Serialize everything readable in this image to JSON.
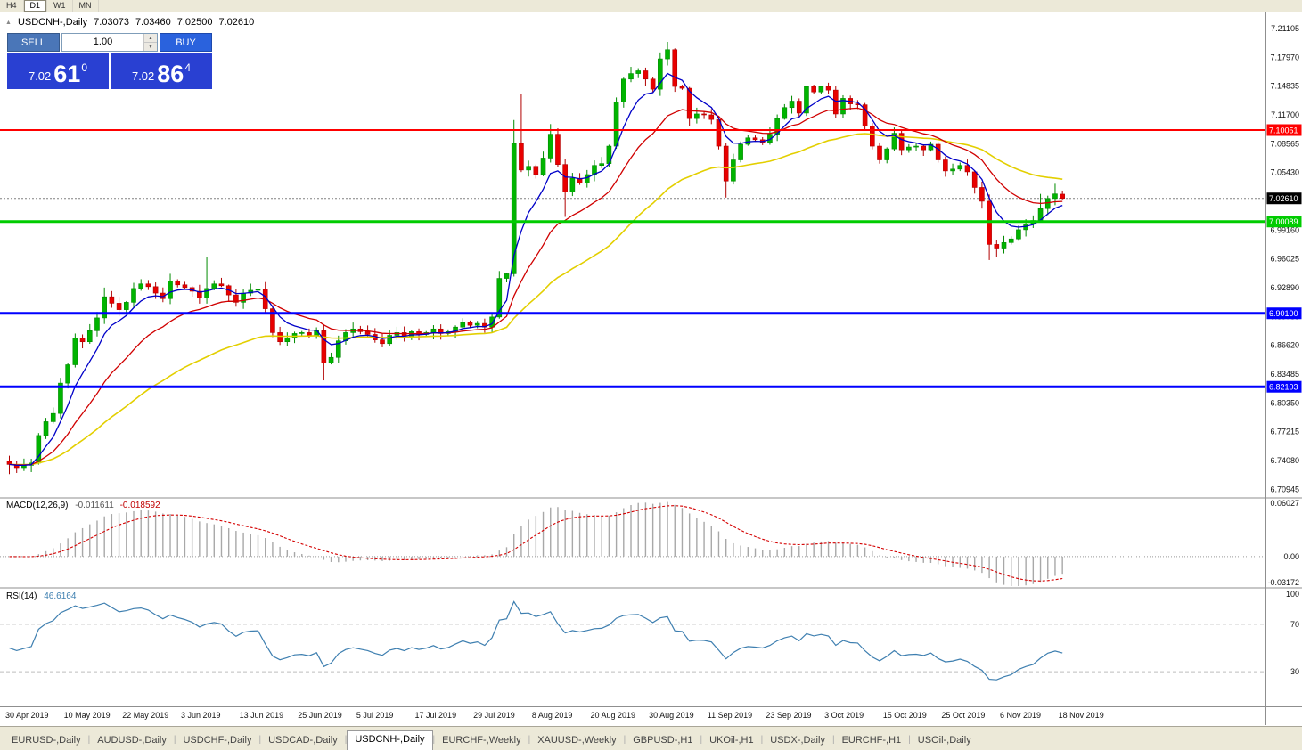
{
  "toolbar": {
    "timeframes": [
      {
        "label": "H4",
        "active": false
      },
      {
        "label": "D1",
        "active": true
      },
      {
        "label": "W1",
        "active": false
      },
      {
        "label": "MN",
        "active": false
      }
    ]
  },
  "chart_header": {
    "symbol": "USDCNH-,Daily",
    "open": "7.03073",
    "high": "7.03460",
    "low": "7.02500",
    "close": "7.02610"
  },
  "one_click_trading": {
    "sell_label": "SELL",
    "buy_label": "BUY",
    "volume": "1.00",
    "sell_price": {
      "prefix": "7.02",
      "big": "61",
      "sup": "0"
    },
    "buy_price": {
      "prefix": "7.02",
      "big": "86",
      "sup": "4"
    }
  },
  "price_axis": {
    "labels": [
      "7.21105",
      "7.17970",
      "7.14835",
      "7.11700",
      "7.08565",
      "7.05430",
      "7.02295",
      "6.99160",
      "6.96025",
      "6.92890",
      "6.89755",
      "6.86620",
      "6.83485",
      "6.80350",
      "6.77215",
      "6.74080",
      "6.70945"
    ],
    "current": "7.02610"
  },
  "hlines": [
    {
      "price": 7.10051,
      "label": "7.10051",
      "color": "#FF0000",
      "width": 2
    },
    {
      "price": 7.00089,
      "label": "7.00089",
      "color": "#00CC00",
      "width": 3
    },
    {
      "price": 6.901,
      "label": "6.90100",
      "color": "#0000FF",
      "width": 3
    },
    {
      "price": 6.82103,
      "label": "6.82103",
      "color": "#0000FF",
      "width": 3
    }
  ],
  "chart_data": {
    "type": "candlestick",
    "symbol": "USDCNH",
    "timeframe": "Daily",
    "price_range": {
      "top": 7.2285,
      "bottom": 6.701
    },
    "first_open": 6.74,
    "closes": [
      6.7365,
      6.733,
      6.7355,
      6.738,
      6.768,
      6.783,
      6.792,
      6.825,
      6.845,
      6.874,
      6.87,
      6.882,
      6.896,
      6.919,
      6.912,
      6.905,
      6.913,
      6.928,
      6.933,
      6.93,
      6.923,
      6.917,
      6.936,
      6.932,
      6.929,
      6.925,
      6.918,
      6.928,
      6.933,
      6.931,
      6.921,
      6.913,
      6.923,
      6.926,
      6.927,
      6.906,
      6.88,
      6.87,
      6.874,
      6.879,
      6.88,
      6.877,
      6.882,
      6.847,
      6.853,
      6.871,
      6.88,
      6.884,
      6.881,
      6.878,
      6.872,
      6.868,
      6.877,
      6.88,
      6.876,
      6.881,
      6.878,
      6.88,
      6.884,
      6.879,
      6.881,
      6.886,
      6.891,
      6.888,
      6.89,
      6.886,
      6.897,
      6.939,
      6.944,
      7.086,
      7.057,
      7.061,
      7.052,
      7.07,
      7.096,
      7.063,
      7.033,
      7.048,
      7.043,
      7.052,
      7.062,
      7.064,
      7.083,
      7.131,
      7.156,
      7.162,
      7.165,
      7.156,
      7.145,
      7.178,
      7.188,
      7.148,
      7.146,
      7.113,
      7.118,
      7.117,
      7.112,
      7.083,
      7.045,
      7.068,
      7.085,
      7.092,
      7.09,
      7.087,
      7.096,
      7.113,
      7.125,
      7.132,
      7.119,
      7.148,
      7.142,
      7.148,
      7.144,
      7.118,
      7.135,
      7.129,
      7.128,
      7.105,
      7.083,
      7.068,
      7.08,
      7.097,
      7.079,
      7.082,
      7.083,
      7.079,
      7.085,
      7.068,
      7.056,
      7.058,
      7.062,
      7.055,
      7.038,
      7.023,
      6.976,
      6.972,
      6.978,
      6.982,
      6.992,
      6.998,
      7.002,
      7.015,
      7.026,
      7.031,
      7.0261
    ],
    "overrides": {
      "0": {
        "o": 6.74,
        "h": 6.746,
        "l": 6.726
      },
      "9": {
        "h": 6.879
      },
      "13": {
        "h": 6.929
      },
      "22": {
        "h": 6.944
      },
      "27": {
        "h": 6.962
      },
      "35": {
        "h": 6.935
      },
      "43": {
        "l": 6.828
      },
      "67": {
        "h": 6.947
      },
      "69": {
        "h": 7.1114,
        "l": 6.941
      },
      "70": {
        "h": 7.1399
      },
      "74": {
        "h": 7.107
      },
      "76": {
        "l": 7.006
      },
      "83": {
        "h": 7.136
      },
      "89": {
        "h": 7.185
      },
      "90": {
        "h": 7.1965
      },
      "93": {
        "l": 7.105
      },
      "98": {
        "l": 7.027
      },
      "109": {
        "h": 7.148
      },
      "111": {
        "h": 7.1489
      },
      "115": {
        "h": 7.138
      },
      "133": {
        "l": 7.015
      },
      "134": {
        "l": 6.959
      },
      "135": {
        "l": 6.962
      },
      "141": {
        "h": 7.031
      },
      "143": {
        "h": 7.042
      },
      "144": {
        "o": 7.03073,
        "h": 7.0346,
        "l": 7.025
      }
    },
    "date_labels": [
      {
        "i": 0,
        "label": "30 Apr 2019"
      },
      {
        "i": 8,
        "label": "10 May 2019"
      },
      {
        "i": 16,
        "label": "22 May 2019"
      },
      {
        "i": 24,
        "label": "3 Jun 2019"
      },
      {
        "i": 32,
        "label": "13 Jun 2019"
      },
      {
        "i": 40,
        "label": "25 Jun 2019"
      },
      {
        "i": 48,
        "label": "5 Jul 2019"
      },
      {
        "i": 56,
        "label": "17 Jul 2019"
      },
      {
        "i": 64,
        "label": "29 Jul 2019"
      },
      {
        "i": 72,
        "label": "8 Aug 2019"
      },
      {
        "i": 80,
        "label": "20 Aug 2019"
      },
      {
        "i": 88,
        "label": "30 Aug 2019"
      },
      {
        "i": 96,
        "label": "11 Sep 2019"
      },
      {
        "i": 104,
        "label": "23 Sep 2019"
      },
      {
        "i": 112,
        "label": "3 Oct 2019"
      },
      {
        "i": 120,
        "label": "15 Oct 2019"
      },
      {
        "i": 128,
        "label": "25 Oct 2019"
      },
      {
        "i": 136,
        "label": "6 Nov 2019"
      },
      {
        "i": 144,
        "label": "18 Nov 2019"
      }
    ],
    "moving_averages": [
      {
        "period": 40,
        "color": "#E3CF00",
        "width": 1.6
      },
      {
        "period": 16,
        "color": "#D00000",
        "width": 1.3
      },
      {
        "period": 6,
        "color": "#0000C8",
        "width": 1.3
      }
    ]
  },
  "macd": {
    "title": "MACD(12,26,9)",
    "main": "-0.011611",
    "signal": "-0.018592",
    "fast": 12,
    "slow": 26,
    "smooth": 9,
    "axis": {
      "top": "0.06027",
      "zero": "0.00",
      "bottom": "-0.03172"
    },
    "range": {
      "max": 0.06027,
      "min": -0.03172
    }
  },
  "rsi": {
    "title": "RSI(14)",
    "value": "46.6164",
    "period": 14,
    "axis": {
      "top": "100",
      "mid": "70",
      "low": "30"
    },
    "levels": [
      70,
      30
    ],
    "range": {
      "max": 100,
      "min": 0
    }
  },
  "tabs": {
    "active_index": 4,
    "items": [
      "EURUSD-,Daily",
      "AUDUSD-,Daily",
      "USDCHF-,Daily",
      "USDCAD-,Daily",
      "USDCNH-,Daily",
      "EURCHF-,Weekly",
      "XAUUSD-,Weekly",
      "GBPUSD-,H1",
      "UKOil-,H1",
      "USDX-,Daily",
      "EURCHF-,H1",
      "USOil-,Daily"
    ]
  },
  "colors": {
    "up": "#00B400",
    "up_border": "#008A00",
    "down": "#E80000",
    "down_border": "#B00000",
    "current_line": "#808080",
    "current_box": "#000000",
    "macd_hist": "#A8A8A8",
    "macd_signal": "#D40000",
    "rsi_line": "#3E7FB0",
    "grid_dashed": "#BDBDBD",
    "chrome": "#ECE9D8",
    "divider": "#8F8F8F"
  }
}
